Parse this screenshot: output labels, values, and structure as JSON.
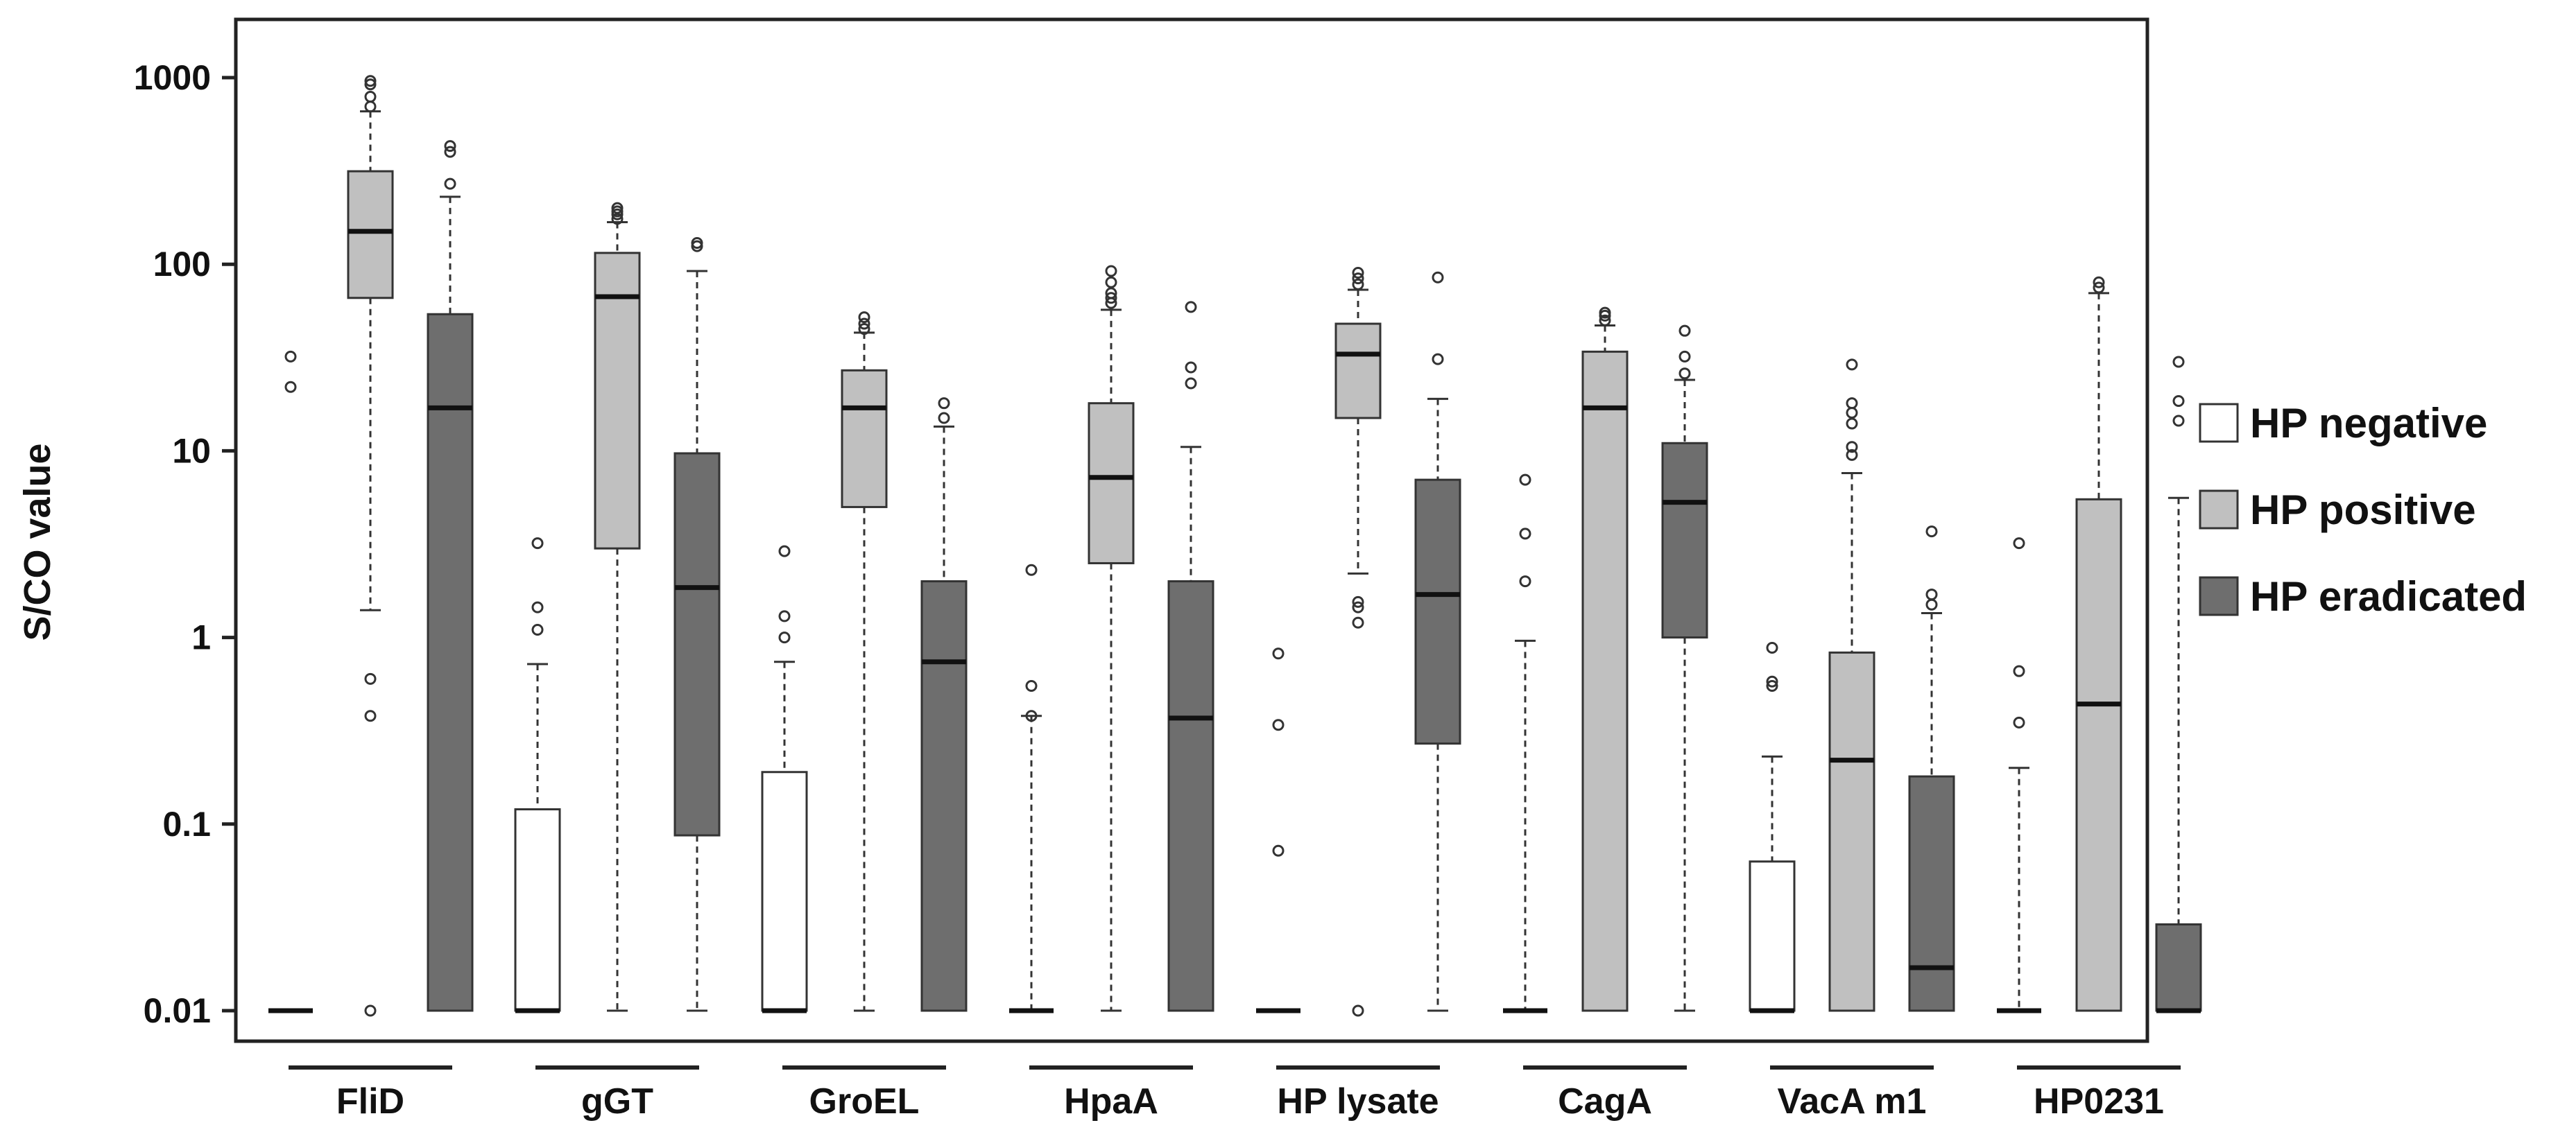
{
  "chart_data": {
    "type": "box",
    "title": "",
    "xlabel": "",
    "ylabel": "S/CO value",
    "yscale": "log",
    "ylim": [
      0.01,
      1000
    ],
    "yticks": [
      {
        "value": 0.01,
        "label": "0.01"
      },
      {
        "value": 0.1,
        "label": "0.1"
      },
      {
        "value": 1,
        "label": "1"
      },
      {
        "value": 10,
        "label": "10"
      },
      {
        "value": 100,
        "label": "100"
      },
      {
        "value": 1000,
        "label": "1000"
      }
    ],
    "grid": false,
    "legend_position": "right",
    "categories": [
      "FliD",
      "gGT",
      "GroEL",
      "HpaA",
      "HP lysate",
      "CagA",
      "VacA m1",
      "HP0231"
    ],
    "series": [
      {
        "name": "HP negative",
        "color": "#ffffff",
        "boxes": [
          {
            "min": 0.01,
            "q1": 0.01,
            "median": 0.01,
            "q3": 0.01,
            "max": 0.01,
            "outliers": [
              22,
              32
            ]
          },
          {
            "min": 0.01,
            "q1": 0.01,
            "median": 0.01,
            "q3": 0.12,
            "max": 0.72,
            "outliers": [
              1.1,
              1.45,
              3.2
            ]
          },
          {
            "min": 0.01,
            "q1": 0.01,
            "median": 0.01,
            "q3": 0.19,
            "max": 0.74,
            "outliers": [
              1.0,
              1.3,
              2.9
            ]
          },
          {
            "min": 0.01,
            "q1": 0.01,
            "median": 0.01,
            "q3": 0.01,
            "max": 0.38,
            "outliers": [
              0.38,
              0.55,
              2.3
            ]
          },
          {
            "min": 0.01,
            "q1": 0.01,
            "median": 0.01,
            "q3": 0.01,
            "max": 0.01,
            "outliers": [
              0.072,
              0.34,
              0.82
            ]
          },
          {
            "min": 0.01,
            "q1": 0.01,
            "median": 0.01,
            "q3": 0.01,
            "max": 0.96,
            "outliers": [
              2.0,
              3.6,
              7.0
            ]
          },
          {
            "min": 0.01,
            "q1": 0.01,
            "median": 0.01,
            "q3": 0.063,
            "max": 0.23,
            "outliers": [
              0.55,
              0.58,
              0.88
            ]
          },
          {
            "min": 0.01,
            "q1": 0.01,
            "median": 0.01,
            "q3": 0.01,
            "max": 0.2,
            "outliers": [
              0.35,
              0.66,
              3.2
            ]
          }
        ]
      },
      {
        "name": "HP positive",
        "color": "#c0c0c0",
        "boxes": [
          {
            "min": 1.4,
            "q1": 66,
            "median": 150,
            "q3": 315,
            "max": 660,
            "outliers": [
              0.01,
              0.38,
              0.6,
              700,
              790,
              920,
              960
            ]
          },
          {
            "min": 0.01,
            "q1": 3.0,
            "median": 67,
            "q3": 115,
            "max": 168,
            "outliers": [
              175,
              185,
              192,
              200
            ]
          },
          {
            "min": 0.01,
            "q1": 5.0,
            "median": 17,
            "q3": 27,
            "max": 43,
            "outliers": [
              45,
              48,
              52
            ]
          },
          {
            "min": 0.01,
            "q1": 2.5,
            "median": 7.2,
            "q3": 18,
            "max": 57,
            "outliers": [
              62,
              66,
              70,
              80,
              92
            ]
          },
          {
            "min": 2.2,
            "q1": 15,
            "median": 33,
            "q3": 48,
            "max": 73,
            "outliers": [
              0.01,
              1.2,
              1.45,
              1.55,
              78,
              84,
              90
            ]
          },
          {
            "min": 0.01,
            "q1": 0.01,
            "median": 17,
            "q3": 34,
            "max": 47,
            "outliers": [
              50,
              53,
              55
            ]
          },
          {
            "min": 0.01,
            "q1": 0.01,
            "median": 0.22,
            "q3": 0.83,
            "max": 7.6,
            "outliers": [
              9.5,
              10.5,
              14,
              16,
              18,
              29
            ]
          },
          {
            "min": 0.01,
            "q1": 0.01,
            "median": 0.44,
            "q3": 5.5,
            "max": 70,
            "outliers": [
              75,
              80
            ]
          }
        ]
      },
      {
        "name": "HP eradicated",
        "color": "#6e6e6e",
        "boxes": [
          {
            "min": 0.01,
            "q1": 0.01,
            "median": 17,
            "q3": 54,
            "max": 230,
            "outliers": [
              270,
              400,
              430
            ]
          },
          {
            "min": 0.01,
            "q1": 0.087,
            "median": 1.85,
            "q3": 9.7,
            "max": 92,
            "outliers": [
              125,
              130
            ]
          },
          {
            "min": 0.01,
            "q1": 0.01,
            "median": 0.74,
            "q3": 2.0,
            "max": 13.5,
            "outliers": [
              15,
              18
            ]
          },
          {
            "min": 0.01,
            "q1": 0.01,
            "median": 0.37,
            "q3": 2.0,
            "max": 10.5,
            "outliers": [
              23,
              28,
              59
            ]
          },
          {
            "min": 0.01,
            "q1": 0.27,
            "median": 1.7,
            "q3": 7.0,
            "max": 19,
            "outliers": [
              31,
              85
            ]
          },
          {
            "min": 0.01,
            "q1": 1.0,
            "median": 5.3,
            "q3": 11,
            "max": 24,
            "outliers": [
              26,
              32,
              44
            ]
          },
          {
            "min": 0.01,
            "q1": 0.01,
            "median": 0.017,
            "q3": 0.18,
            "max": 1.35,
            "outliers": [
              1.5,
              1.7,
              3.7
            ]
          },
          {
            "min": 0.01,
            "q1": 0.01,
            "median": 0.01,
            "q3": 0.029,
            "max": 5.6,
            "outliers": [
              14.5,
              18.5,
              30
            ]
          }
        ]
      }
    ]
  }
}
